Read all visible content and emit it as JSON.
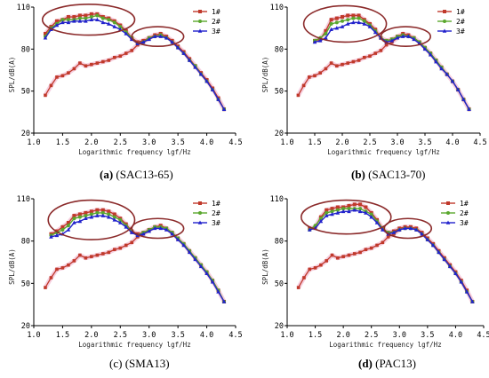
{
  "figure": {
    "panels": [
      {
        "letter": "(a)",
        "name": "(SAC13-65)"
      },
      {
        "letter": "(b)",
        "name": "(SAC13-70)"
      },
      {
        "letter": "(c)",
        "name": "(SMA13)"
      },
      {
        "letter": "(d)",
        "name": "(PAC13)"
      }
    ]
  },
  "colors": {
    "s1": "#c0392b",
    "s2": "#5aa72e",
    "s3": "#2222cc",
    "ellipse": "#8b2a2a"
  },
  "chart_data": [
    {
      "type": "line",
      "title": "(a) (SAC13-65)",
      "xlabel": "Logarithmic frequency lgf/Hz",
      "ylabel": "SPL/dB(A)",
      "xlim": [
        1.0,
        4.5
      ],
      "ylim": [
        20,
        110
      ],
      "xticks": [
        "1.0",
        "1.5",
        "2.0",
        "2.5",
        "3.0",
        "3.5",
        "4.0",
        "4.5"
      ],
      "yticks": [
        "20",
        "50",
        "80",
        "110"
      ],
      "legend_position": "top-right",
      "highlights": [
        {
          "cx": 1.95,
          "cy": 101,
          "rx": 0.8,
          "ry": 11
        },
        {
          "cx": 3.15,
          "cy": 89,
          "rx": 0.45,
          "ry": 7
        }
      ],
      "x": [
        1.2,
        1.3,
        1.4,
        1.5,
        1.6,
        1.7,
        1.8,
        1.9,
        2.0,
        2.1,
        2.2,
        2.3,
        2.4,
        2.5,
        2.6,
        2.7,
        2.8,
        2.9,
        3.0,
        3.1,
        3.2,
        3.3,
        3.4,
        3.5,
        3.6,
        3.7,
        3.8,
        3.9,
        4.0,
        4.1,
        4.2,
        4.3
      ],
      "series": [
        {
          "name": "1#",
          "values": [
            91,
            96,
            100,
            101,
            103,
            103,
            104,
            104,
            105,
            105,
            103,
            102,
            100,
            97,
            93,
            88,
            85,
            86,
            88,
            90,
            91,
            89,
            86,
            82,
            78,
            73,
            68,
            63,
            58,
            52,
            45,
            37
          ]
        },
        {
          "name": "2#",
          "values": [
            89,
            95,
            98,
            101,
            101,
            101,
            102,
            102,
            103,
            104,
            102,
            101,
            99,
            96,
            92,
            88,
            84,
            85,
            88,
            89,
            90,
            88,
            85,
            81,
            77,
            72,
            68,
            62,
            57,
            51,
            44,
            37
          ]
        },
        {
          "name": "3#",
          "values": [
            88,
            94,
            97,
            99,
            99,
            100,
            100,
            100,
            101,
            101,
            99,
            98,
            96,
            94,
            91,
            87,
            84,
            85,
            87,
            89,
            89,
            88,
            85,
            81,
            77,
            72,
            67,
            62,
            57,
            51,
            44,
            37
          ]
        }
      ]
    },
    {
      "type": "line",
      "title": "(b) (SAC13-70)",
      "xlabel": "Logarithmic frequency lgf/Hz",
      "ylabel": "SPL/dB(A)",
      "xlim": [
        1.0,
        4.5
      ],
      "ylim": [
        20,
        110
      ],
      "xticks": [
        "1.0",
        "1.5",
        "2.0",
        "2.5",
        "3.0",
        "3.5",
        "4.0",
        "4.5"
      ],
      "yticks": [
        "20",
        "50",
        "80",
        "110"
      ],
      "legend_position": "top-right",
      "highlights": [
        {
          "cx": 2.05,
          "cy": 98,
          "rx": 0.75,
          "ry": 13
        },
        {
          "cx": 3.15,
          "cy": 89,
          "rx": 0.45,
          "ry": 7
        }
      ],
      "x": [
        1.5,
        1.6,
        1.7,
        1.8,
        1.9,
        2.0,
        2.1,
        2.2,
        2.3,
        2.4,
        2.5,
        2.6,
        2.7,
        2.8,
        2.9,
        3.0,
        3.1,
        3.2,
        3.3,
        3.4,
        3.5,
        3.6,
        3.7,
        3.8,
        3.9,
        4.0,
        4.1,
        4.2,
        4.3
      ],
      "series": [
        {
          "name": "1#",
          "values": [
            86,
            87,
            93,
            101,
            102,
            103,
            104,
            104,
            104,
            101,
            98,
            94,
            88,
            86,
            87,
            89,
            91,
            90,
            88,
            85,
            81,
            77,
            72,
            67,
            62,
            57,
            51,
            44,
            37
          ]
        },
        {
          "name": "2#",
          "values": [
            86,
            88,
            91,
            98,
            99,
            100,
            101,
            102,
            102,
            100,
            97,
            93,
            88,
            86,
            87,
            89,
            90,
            89,
            88,
            85,
            81,
            77,
            72,
            67,
            62,
            57,
            51,
            44,
            37
          ]
        },
        {
          "name": "3#",
          "values": [
            85,
            86,
            88,
            94,
            95,
            96,
            98,
            99,
            99,
            98,
            96,
            92,
            88,
            85,
            86,
            88,
            89,
            89,
            87,
            84,
            80,
            76,
            71,
            66,
            62,
            57,
            51,
            44,
            37
          ]
        }
      ]
    },
    {
      "type": "line",
      "title": "(c) (SMA13)",
      "xlabel": "Logarithmic frequency lgf/Hz",
      "ylabel": "SPL/dB(A)",
      "xlim": [
        1.0,
        4.5
      ],
      "ylim": [
        20,
        110
      ],
      "xticks": [
        "1.0",
        "1.5",
        "2.0",
        "2.5",
        "3.0",
        "3.5",
        "4.0",
        "4.5"
      ],
      "yticks": [
        "20",
        "50",
        "80",
        "110"
      ],
      "legend_position": "top-right",
      "highlights": [
        {
          "cx": 2.0,
          "cy": 95,
          "rx": 0.75,
          "ry": 14
        },
        {
          "cx": 3.15,
          "cy": 89,
          "rx": 0.45,
          "ry": 7
        }
      ],
      "x": [
        1.3,
        1.4,
        1.5,
        1.6,
        1.7,
        1.8,
        1.9,
        2.0,
        2.1,
        2.2,
        2.3,
        2.4,
        2.5,
        2.6,
        2.7,
        2.8,
        2.9,
        3.0,
        3.1,
        3.2,
        3.3,
        3.4,
        3.5,
        3.6,
        3.7,
        3.8,
        3.9,
        4.0,
        4.1,
        4.2,
        4.3
      ],
      "series": [
        {
          "name": "1#",
          "values": [
            85,
            87,
            90,
            93,
            98,
            99,
            100,
            101,
            102,
            102,
            101,
            99,
            96,
            92,
            87,
            85,
            86,
            88,
            90,
            91,
            89,
            86,
            82,
            78,
            73,
            68,
            63,
            58,
            52,
            45,
            37
          ]
        },
        {
          "name": "2#",
          "values": [
            84,
            86,
            88,
            91,
            96,
            97,
            98,
            99,
            100,
            100,
            99,
            97,
            95,
            91,
            87,
            84,
            86,
            88,
            90,
            90,
            89,
            86,
            82,
            78,
            73,
            68,
            63,
            58,
            52,
            45,
            37
          ]
        },
        {
          "name": "3#",
          "values": [
            83,
            84,
            85,
            88,
            93,
            94,
            96,
            97,
            98,
            98,
            97,
            95,
            93,
            90,
            86,
            84,
            85,
            87,
            89,
            89,
            88,
            85,
            81,
            77,
            72,
            67,
            62,
            57,
            51,
            44,
            37
          ]
        }
      ]
    },
    {
      "type": "line",
      "title": "(d) (PAC13)",
      "xlabel": "Logarithmic frequency lgf/Hz",
      "ylabel": "SPL/dB(A)",
      "xlim": [
        1.0,
        4.5
      ],
      "ylim": [
        20,
        110
      ],
      "xticks": [
        "1.0",
        "1.5",
        "2.0",
        "2.5",
        "3.0",
        "3.5",
        "4.0",
        "4.5"
      ],
      "yticks": [
        "20",
        "50",
        "80",
        "110"
      ],
      "legend_position": "top-right",
      "highlights": [
        {
          "cx": 2.05,
          "cy": 97,
          "rx": 0.8,
          "ry": 12
        },
        {
          "cx": 3.15,
          "cy": 89,
          "rx": 0.42,
          "ry": 7
        }
      ],
      "x": [
        1.4,
        1.5,
        1.6,
        1.7,
        1.8,
        1.9,
        2.0,
        2.1,
        2.2,
        2.3,
        2.4,
        2.5,
        2.6,
        2.7,
        2.8,
        2.9,
        3.0,
        3.1,
        3.2,
        3.3,
        3.4,
        3.5,
        3.6,
        3.7,
        3.8,
        3.9,
        4.0,
        4.1,
        4.2,
        4.3
      ],
      "series": [
        {
          "name": "1#",
          "values": [
            89,
            90,
            97,
            102,
            103,
            104,
            104,
            105,
            106,
            106,
            104,
            100,
            95,
            89,
            86,
            87,
            89,
            90,
            90,
            89,
            86,
            82,
            78,
            73,
            68,
            63,
            58,
            52,
            45,
            37
          ]
        },
        {
          "name": "2#",
          "values": [
            88,
            91,
            96,
            100,
            101,
            102,
            103,
            103,
            103,
            103,
            101,
            99,
            94,
            89,
            86,
            86,
            88,
            89,
            89,
            88,
            85,
            81,
            77,
            72,
            67,
            62,
            57,
            51,
            44,
            37
          ]
        },
        {
          "name": "3#",
          "values": [
            88,
            89,
            94,
            98,
            99,
            100,
            101,
            101,
            102,
            101,
            100,
            97,
            93,
            88,
            85,
            86,
            88,
            89,
            89,
            88,
            85,
            81,
            77,
            72,
            67,
            62,
            57,
            51,
            44,
            37
          ]
        }
      ]
    }
  ],
  "lower_trace": {
    "x": [
      1.2,
      1.3,
      1.4,
      1.5,
      1.6,
      1.7,
      1.8,
      1.9,
      2.0,
      2.1,
      2.2,
      2.3,
      2.4,
      2.5,
      2.6,
      2.7,
      2.8,
      2.9,
      3.0
    ],
    "values": [
      47,
      54,
      60,
      61,
      63,
      66,
      70,
      68,
      69,
      70,
      71,
      72,
      74,
      75,
      77,
      79,
      83,
      85,
      88
    ]
  }
}
